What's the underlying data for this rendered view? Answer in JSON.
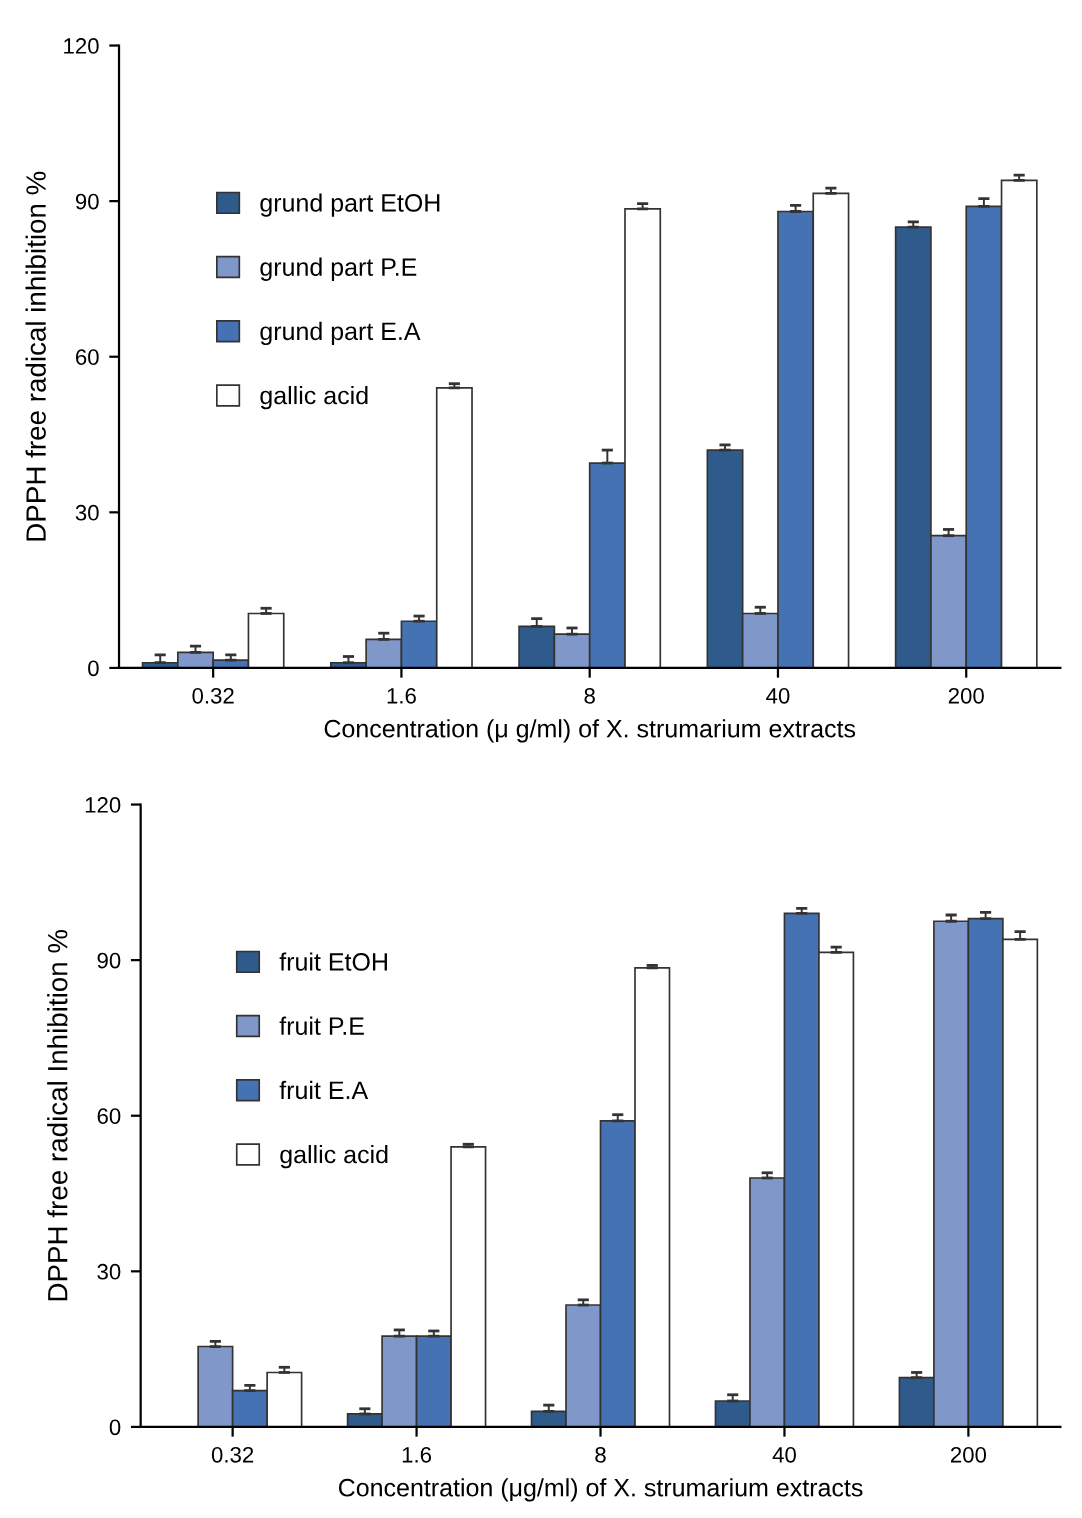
{
  "chart_data": [
    {
      "type": "bar",
      "categories": [
        "0.32",
        "1.6",
        "8",
        "40",
        "200"
      ],
      "xlabel": "Concentration (μ g/ml) of X. strumarium extracts",
      "ylabel": "DPPH free radical inhibition %",
      "ylim": [
        0,
        120
      ],
      "yticks": [
        0,
        30,
        60,
        90,
        120
      ],
      "legend": "top left",
      "grid": false,
      "series": [
        {
          "name": "grund part EtOH",
          "color": "#2e5a8c",
          "values": [
            1,
            1,
            8,
            42,
            85
          ],
          "errors": [
            [
              1,
              2.5
            ],
            [
              1,
              2.2
            ],
            [
              8,
              9.5
            ],
            [
              42,
              43
            ],
            [
              85,
              86
            ]
          ]
        },
        {
          "name": "grund part P.E",
          "color": "#8097c9",
          "values": [
            3,
            5.5,
            6.5,
            10.5,
            25.5
          ],
          "errors": [
            [
              3,
              4.2
            ],
            [
              5.5,
              6.7
            ],
            [
              6.5,
              7.7
            ],
            [
              10.5,
              11.7
            ],
            [
              25.5,
              26.7
            ]
          ]
        },
        {
          "name": "grund part E.A",
          "color": "#4572b2",
          "values": [
            1.5,
            9,
            39.5,
            88,
            89
          ],
          "errors": [
            [
              1.5,
              2.5
            ],
            [
              9,
              10
            ],
            [
              39.5,
              42
            ],
            [
              88,
              89.2
            ],
            [
              89,
              90.5
            ]
          ]
        },
        {
          "name": "gallic acid",
          "color": "#ffffff",
          "values": [
            10.5,
            54,
            88.5,
            91.5,
            94
          ],
          "errors": [
            [
              10.5,
              11.5
            ],
            [
              54,
              54.8
            ],
            [
              88.5,
              89.5
            ],
            [
              91.5,
              92.5
            ],
            [
              94,
              95
            ]
          ]
        }
      ]
    },
    {
      "type": "bar",
      "categories": [
        "0.32",
        "1.6",
        "8",
        "40",
        "200"
      ],
      "xlabel": "Concentration (μg/ml) of X. strumarium extracts",
      "ylabel": "DPPH free radical Inhibition %",
      "ylim": [
        0,
        120
      ],
      "yticks": [
        0,
        30,
        60,
        90,
        120
      ],
      "legend": "top left",
      "grid": false,
      "series": [
        {
          "name": "fruit EtOH",
          "color": "#2e5a8c",
          "values": [
            null,
            2.5,
            3,
            5,
            9.5
          ],
          "errors": [
            null,
            [
              2.5,
              3.5
            ],
            [
              3,
              4.2
            ],
            [
              5,
              6.2
            ],
            [
              9.5,
              10.5
            ]
          ]
        },
        {
          "name": "fruit P.E",
          "color": "#8097c9",
          "values": [
            15.5,
            17.5,
            23.5,
            48,
            97.5
          ],
          "errors": [
            [
              15.5,
              16.5
            ],
            [
              17.5,
              18.7
            ],
            [
              23.5,
              24.5
            ],
            [
              48,
              49
            ],
            [
              97.5,
              98.7
            ]
          ]
        },
        {
          "name": "fruit E.A",
          "color": "#4572b2",
          "values": [
            7,
            17.5,
            59,
            99,
            98
          ],
          "errors": [
            [
              7,
              8
            ],
            [
              17.5,
              18.5
            ],
            [
              59,
              60.2
            ],
            [
              99,
              100
            ],
            [
              98,
              99.2
            ]
          ]
        },
        {
          "name": "gallic acid",
          "color": "#ffffff",
          "values": [
            10.5,
            54,
            88.5,
            91.5,
            94
          ],
          "errors": [
            [
              10.5,
              11.5
            ],
            [
              54,
              54.5
            ],
            [
              88.5,
              89
            ],
            [
              91.5,
              92.5
            ],
            [
              94,
              95.5
            ]
          ]
        }
      ]
    }
  ]
}
